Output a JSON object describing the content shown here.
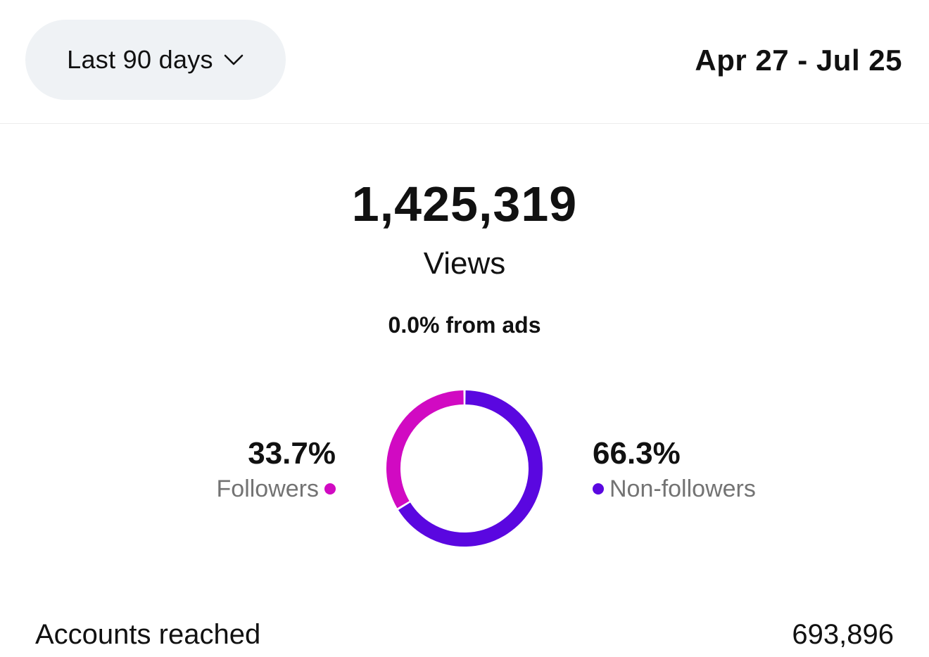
{
  "header": {
    "range_label": "Last 90 days",
    "date_range": "Apr 27 - Jul 25"
  },
  "summary": {
    "total": "1,425,319",
    "metric": "Views",
    "ads_note": "0.0% from ads"
  },
  "breakdown": {
    "followers": {
      "pct_label": "33.7%",
      "pct": 33.7,
      "name": "Followers",
      "color": "#d10ac2"
    },
    "non_followers": {
      "pct_label": "66.3%",
      "pct": 66.3,
      "name": "Non-followers",
      "color": "#5a07e0"
    }
  },
  "stats": [
    {
      "label": "Accounts reached",
      "value": "693,896"
    }
  ],
  "chart_data": {
    "type": "pie",
    "categories": [
      "Followers",
      "Non-followers"
    ],
    "values": [
      33.7,
      66.3
    ],
    "title": "Views",
    "xlabel": "",
    "ylabel": ""
  }
}
